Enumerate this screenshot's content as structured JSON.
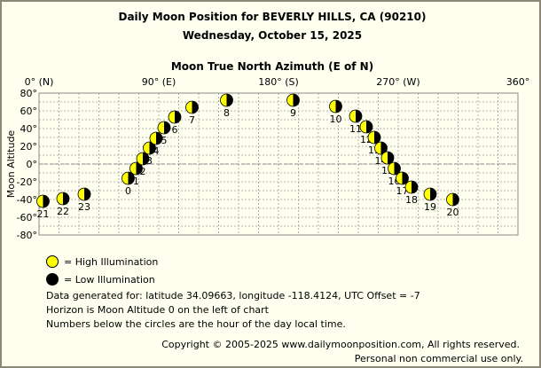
{
  "title": "Daily Moon Position for BEVERLY HILLS, CA (90210)",
  "subtitle": "Wednesday, October 15, 2025",
  "chart_data": {
    "type": "scatter",
    "xlabel": "Moon True North Azimuth (E of N)",
    "ylabel": "Moon Altitude",
    "xlim": [
      0,
      360
    ],
    "ylim": [
      -80,
      80
    ],
    "x_ticks": [
      {
        "value": 0,
        "label": "0° (N)"
      },
      {
        "value": 90,
        "label": "90° (E)"
      },
      {
        "value": 180,
        "label": "180° (S)"
      },
      {
        "value": 270,
        "label": "270° (W)"
      },
      {
        "value": 360,
        "label": "360°"
      }
    ],
    "y_ticks": [
      {
        "value": 80,
        "label": "80°"
      },
      {
        "value": 60,
        "label": "60°"
      },
      {
        "value": 40,
        "label": "40°"
      },
      {
        "value": 20,
        "label": "20°"
      },
      {
        "value": 0,
        "label": "0°"
      },
      {
        "value": -20,
        "label": "-20°"
      },
      {
        "value": -40,
        "label": "-40°"
      },
      {
        "value": -60,
        "label": "-60°"
      },
      {
        "value": -80,
        "label": "-80°"
      }
    ],
    "grid": true,
    "points": [
      {
        "hour": "0",
        "azimuth": 67,
        "altitude": -16
      },
      {
        "hour": "1",
        "azimuth": 73,
        "altitude": -5
      },
      {
        "hour": "2",
        "azimuth": 78,
        "altitude": 6
      },
      {
        "hour": "3",
        "azimuth": 83,
        "altitude": 18
      },
      {
        "hour": "4",
        "azimuth": 88,
        "altitude": 29
      },
      {
        "hour": "5",
        "azimuth": 94,
        "altitude": 41
      },
      {
        "hour": "6",
        "azimuth": 102,
        "altitude": 53
      },
      {
        "hour": "7",
        "azimuth": 115,
        "altitude": 64
      },
      {
        "hour": "8",
        "azimuth": 141,
        "altitude": 72
      },
      {
        "hour": "9",
        "azimuth": 191,
        "altitude": 72
      },
      {
        "hour": "10",
        "azimuth": 223,
        "altitude": 65
      },
      {
        "hour": "11",
        "azimuth": 238,
        "altitude": 54
      },
      {
        "hour": "12",
        "azimuth": 246,
        "altitude": 42
      },
      {
        "hour": "13",
        "azimuth": 252,
        "altitude": 30
      },
      {
        "hour": "14",
        "azimuth": 257,
        "altitude": 18
      },
      {
        "hour": "15",
        "azimuth": 262,
        "altitude": 7
      },
      {
        "hour": "16",
        "azimuth": 267,
        "altitude": -5
      },
      {
        "hour": "17",
        "azimuth": 273,
        "altitude": -16
      },
      {
        "hour": "18",
        "azimuth": 280,
        "altitude": -26
      },
      {
        "hour": "19",
        "azimuth": 294,
        "altitude": -34
      },
      {
        "hour": "20",
        "azimuth": 311,
        "altitude": -40
      },
      {
        "hour": "21",
        "azimuth": 3,
        "altitude": -42
      },
      {
        "hour": "22",
        "azimuth": 18,
        "altitude": -39
      },
      {
        "hour": "23",
        "azimuth": 34,
        "altitude": -34
      }
    ],
    "legend": [
      {
        "label": "= High Illumination",
        "color": "#ffff00"
      },
      {
        "label": "= Low Illumination",
        "color": "#000000"
      }
    ]
  },
  "notes": [
    "Data generated for: latitude 34.09663, longitude -118.4124, UTC Offset = -7",
    "Horizon is Moon Altitude 0 on the left of chart",
    "Numbers below the circles are the hour of the day local time."
  ],
  "copyright": "Copyright © 2005-2025 www.dailymoonposition.com, All rights reserved.",
  "license": "Personal non commercial use only.",
  "colors": {
    "moon_lit": "#ffff00",
    "moon_dark": "#000000",
    "grid": "#b0b0b0",
    "frame": "#8b8878",
    "background": "#fffff0"
  }
}
